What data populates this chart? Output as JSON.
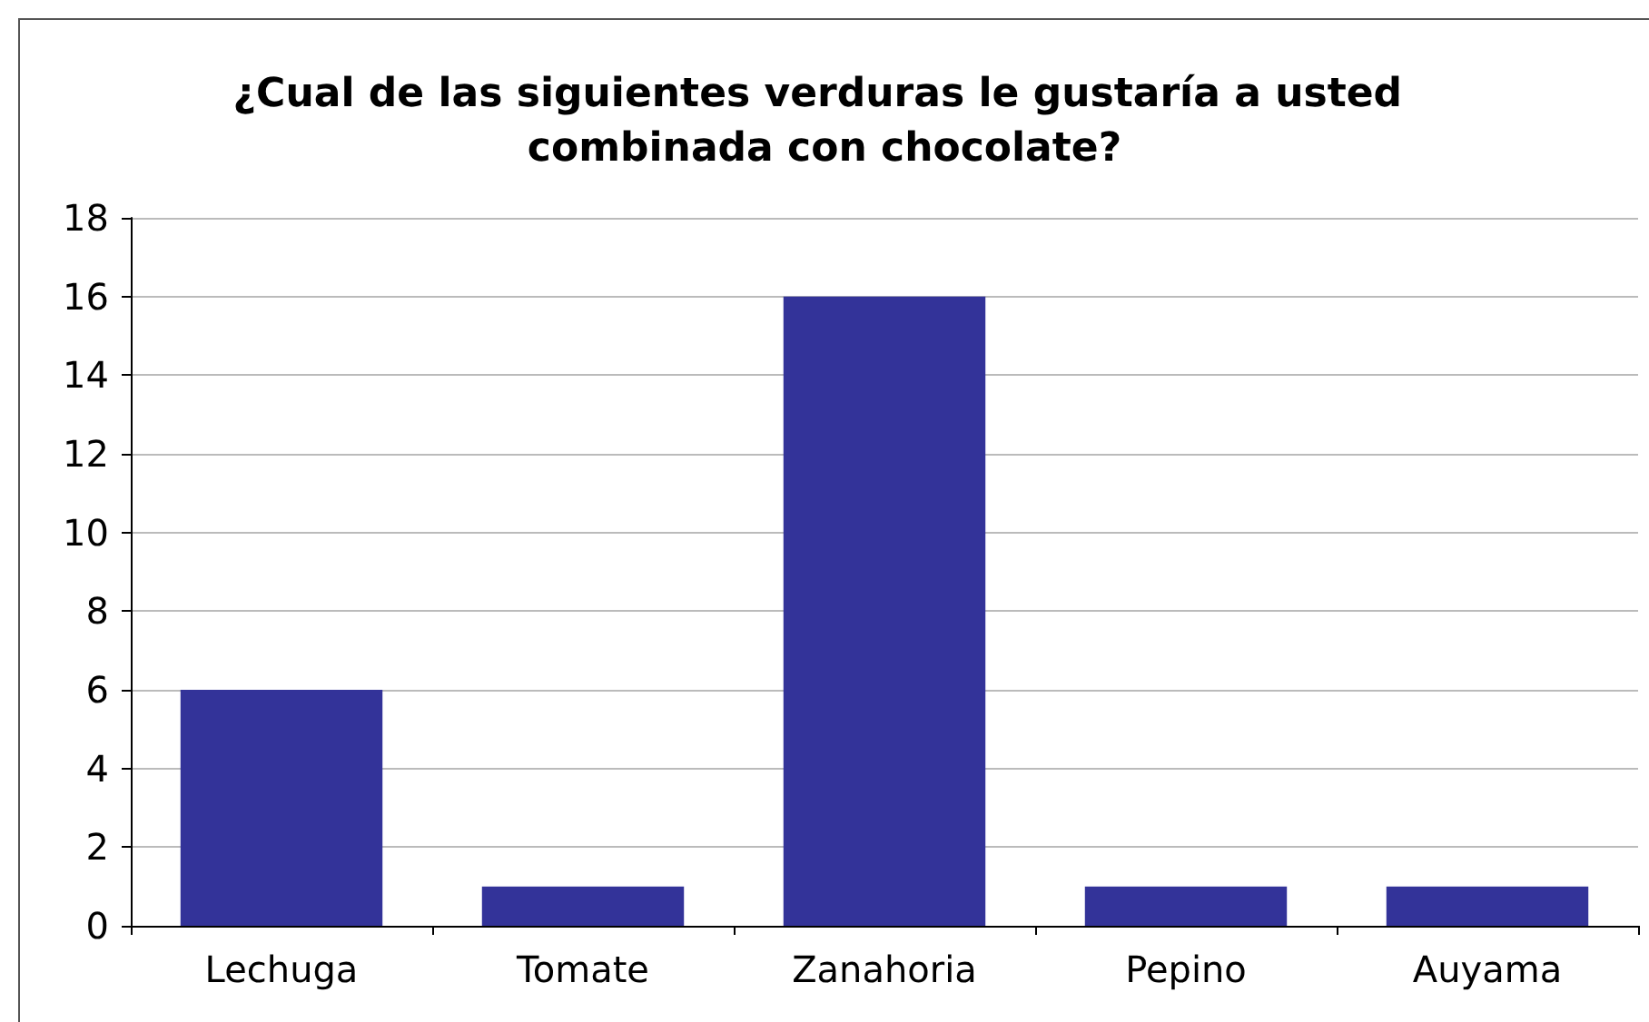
{
  "chart_data": {
    "type": "bar",
    "title": "¿Cual de las siguientes verduras le gustaría a usted combinada con chocolate?",
    "categories": [
      "Lechuga",
      "Tomate",
      "Zanahoria",
      "Pepino",
      "Auyama"
    ],
    "values": [
      6,
      1,
      16,
      1,
      1
    ],
    "color": "#333399",
    "ylim": [
      0,
      18
    ],
    "yticks": [
      0,
      2,
      4,
      6,
      8,
      10,
      12,
      14,
      16,
      18
    ],
    "grid": "y"
  }
}
